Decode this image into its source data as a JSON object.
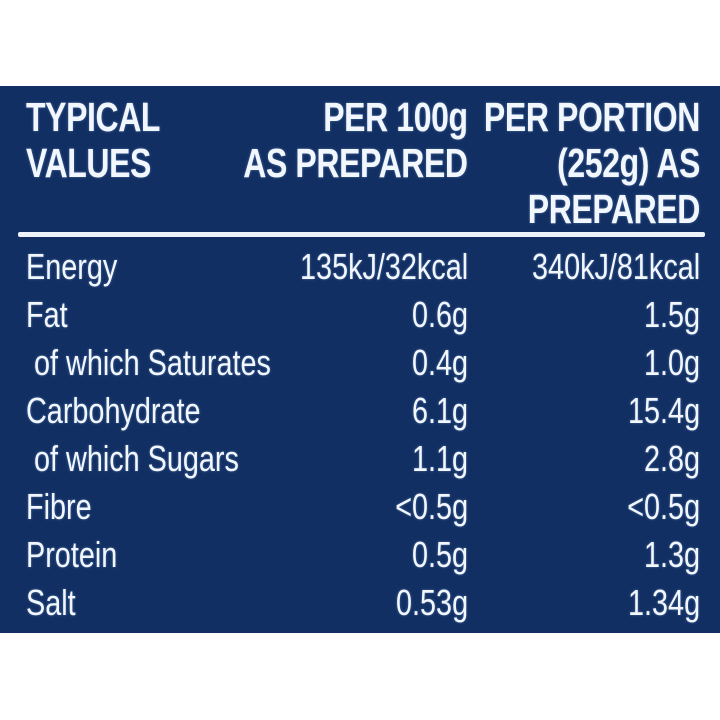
{
  "colors": {
    "page_background": "#ffffff",
    "panel_background": "#122f63",
    "text": "#f2f7fe",
    "rule": "#edf3fa"
  },
  "nutrition_table": {
    "header": {
      "col1": {
        "line1": "TYPICAL",
        "line2": "VALUES"
      },
      "col2": {
        "line1": "PER 100g",
        "line2": "AS PREPARED"
      },
      "col3": {
        "line1": "PER PORTION",
        "line2": "(252g) AS",
        "line3": "PREPARED"
      }
    },
    "rows": [
      {
        "label": "Energy",
        "per_100g": "135kJ/32kcal",
        "per_portion": "340kJ/81kcal"
      },
      {
        "label": "Fat",
        "per_100g": "0.6g",
        "per_portion": "1.5g"
      },
      {
        "label": "of which Saturates",
        "per_100g": "0.4g",
        "per_portion": "1.0g"
      },
      {
        "label": "Carbohydrate",
        "per_100g": "6.1g",
        "per_portion": "15.4g"
      },
      {
        "label": "of which Sugars",
        "per_100g": "1.1g",
        "per_portion": "2.8g"
      },
      {
        "label": "Fibre",
        "per_100g": "<0.5g",
        "per_portion": "<0.5g"
      },
      {
        "label": "Protein",
        "per_100g": "0.5g",
        "per_portion": "1.3g"
      },
      {
        "label": "Salt",
        "per_100g": "0.53g",
        "per_portion": "1.34g"
      }
    ]
  }
}
